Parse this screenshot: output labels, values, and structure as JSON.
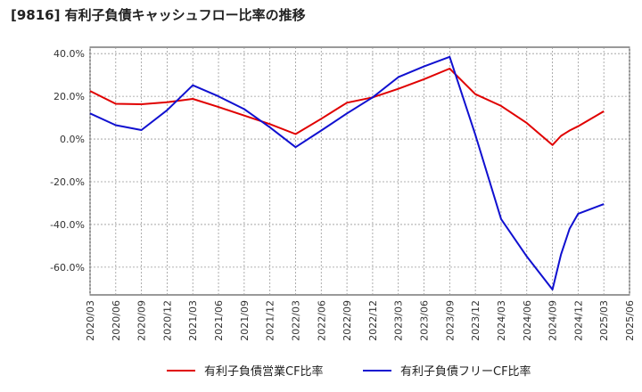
{
  "title": "[9816]  有利子負債キャッシュフロー比率の推移",
  "chart_data": {
    "type": "line",
    "title": "[9816]  有利子負債キャッシュフロー比率の推移",
    "xlabel": "",
    "ylabel": "",
    "ylim": [
      -73,
      43
    ],
    "grid": true,
    "legend_position": "bottom",
    "x_tick_labels": [
      "2020/03",
      "2020/06",
      "2020/09",
      "2020/12",
      "2021/03",
      "2021/06",
      "2021/09",
      "2021/12",
      "2022/03",
      "2022/06",
      "2022/09",
      "2022/12",
      "2023/03",
      "2023/06",
      "2023/09",
      "2023/12",
      "2024/03",
      "2024/06",
      "2024/09",
      "2024/12",
      "2025/03",
      "2025/06"
    ],
    "y_ticks": [
      40,
      20,
      0,
      -20,
      -40,
      -60
    ],
    "y_tick_labels": [
      "40.0%",
      "20.0%",
      "0.0%",
      "-20.0%",
      "-40.0%",
      "-60.0%"
    ],
    "series": [
      {
        "name": "有利子負債営業CF比率",
        "color": "#e00000",
        "points": [
          [
            "2020/03",
            22.5
          ],
          [
            "2020/06",
            16.5
          ],
          [
            "2020/09",
            16.3
          ],
          [
            "2020/12",
            17.2
          ],
          [
            "2021/03",
            18.8
          ],
          [
            "2021/06",
            15.0
          ],
          [
            "2021/09",
            11.0
          ],
          [
            "2021/12",
            7.0
          ],
          [
            "2022/03",
            2.3
          ],
          [
            "2022/06",
            9.5
          ],
          [
            "2022/09",
            17.0
          ],
          [
            "2022/12",
            19.5
          ],
          [
            "2023/03",
            23.5
          ],
          [
            "2023/06",
            28.0
          ],
          [
            "2023/09",
            33.0
          ],
          [
            "2023/12",
            21.0
          ],
          [
            "2024/03",
            15.5
          ],
          [
            "2024/06",
            7.5
          ],
          [
            "2024/09",
            -2.8
          ],
          [
            "2024/10",
            1.5
          ],
          [
            "2024/11",
            4.0
          ],
          [
            "2024/12",
            6.0
          ],
          [
            "2025/03",
            13.0
          ]
        ]
      },
      {
        "name": "有利子負債フリーCF比率",
        "color": "#1010d0",
        "points": [
          [
            "2020/03",
            12.0
          ],
          [
            "2020/06",
            6.5
          ],
          [
            "2020/09",
            4.2
          ],
          [
            "2020/12",
            13.5
          ],
          [
            "2021/03",
            25.2
          ],
          [
            "2021/06",
            20.0
          ],
          [
            "2021/09",
            14.0
          ],
          [
            "2021/12",
            5.5
          ],
          [
            "2022/03",
            -3.8
          ],
          [
            "2022/06",
            4.0
          ],
          [
            "2022/09",
            12.0
          ],
          [
            "2022/12",
            19.5
          ],
          [
            "2023/03",
            29.0
          ],
          [
            "2023/06",
            34.0
          ],
          [
            "2023/09",
            38.5
          ],
          [
            "2023/12",
            2.0
          ],
          [
            "2024/03",
            -37.5
          ],
          [
            "2024/06",
            -55.0
          ],
          [
            "2024/09",
            -70.5
          ],
          [
            "2024/10",
            -54.0
          ],
          [
            "2024/11",
            -42.0
          ],
          [
            "2024/12",
            -35.0
          ],
          [
            "2025/03",
            -30.5
          ]
        ]
      }
    ]
  }
}
